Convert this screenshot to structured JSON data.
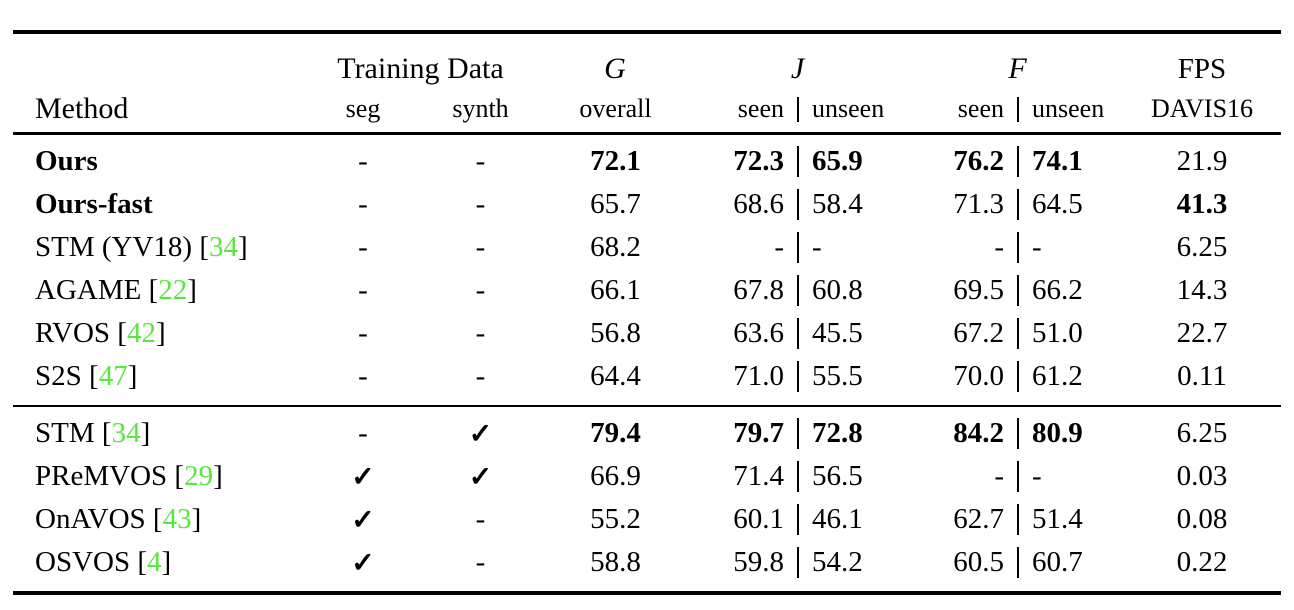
{
  "table": {
    "header": {
      "method": "Method",
      "training_data": "Training Data",
      "seg": "seg",
      "synth": "synth",
      "g_symbol": "G",
      "g_sub": "overall",
      "j_symbol": "J",
      "f_symbol": "F",
      "seen": "seen",
      "unseen": "unseen",
      "fps": "FPS",
      "fps_sub": "DAVIS16"
    },
    "colors": {
      "citation_green": "#58e83c",
      "text": "#000000",
      "background": "#ffffff"
    },
    "glyphs": {
      "checkmark": "✓",
      "dash": "-"
    },
    "sections": [
      {
        "rows": [
          {
            "method": "Ours",
            "cite": "",
            "method_bold": true,
            "seg": "-",
            "synth": "-",
            "g": "72.1",
            "g_bold": true,
            "j_seen": "72.3",
            "j_unseen": "65.9",
            "j_bold": true,
            "f_seen": "76.2",
            "f_unseen": "74.1",
            "f_bold": true,
            "fps": "21.9",
            "fps_bold": false
          },
          {
            "method": "Ours-fast",
            "cite": "",
            "method_bold": true,
            "seg": "-",
            "synth": "-",
            "g": "65.7",
            "g_bold": false,
            "j_seen": "68.6",
            "j_unseen": "58.4",
            "j_bold": false,
            "f_seen": "71.3",
            "f_unseen": "64.5",
            "f_bold": false,
            "fps": "41.3",
            "fps_bold": true
          },
          {
            "method": "STM (YV18)",
            "cite": "34",
            "method_bold": false,
            "seg": "-",
            "synth": "-",
            "g": "68.2",
            "g_bold": false,
            "j_seen": "-",
            "j_unseen": "-",
            "j_bold": false,
            "f_seen": "-",
            "f_unseen": "-",
            "f_bold": false,
            "fps": "6.25",
            "fps_bold": false
          },
          {
            "method": "AGAME",
            "cite": "22",
            "method_bold": false,
            "seg": "-",
            "synth": "-",
            "g": "66.1",
            "g_bold": false,
            "j_seen": "67.8",
            "j_unseen": "60.8",
            "j_bold": false,
            "f_seen": "69.5",
            "f_unseen": "66.2",
            "f_bold": false,
            "fps": "14.3",
            "fps_bold": false
          },
          {
            "method": "RVOS",
            "cite": "42",
            "method_bold": false,
            "seg": "-",
            "synth": "-",
            "g": "56.8",
            "g_bold": false,
            "j_seen": "63.6",
            "j_unseen": "45.5",
            "j_bold": false,
            "f_seen": "67.2",
            "f_unseen": "51.0",
            "f_bold": false,
            "fps": "22.7",
            "fps_bold": false
          },
          {
            "method": "S2S",
            "cite": "47",
            "method_bold": false,
            "seg": "-",
            "synth": "-",
            "g": "64.4",
            "g_bold": false,
            "j_seen": "71.0",
            "j_unseen": "55.5",
            "j_bold": false,
            "f_seen": "70.0",
            "f_unseen": "61.2",
            "f_bold": false,
            "fps": "0.11",
            "fps_bold": false
          }
        ]
      },
      {
        "rows": [
          {
            "method": "STM",
            "cite": "34",
            "method_bold": false,
            "seg": "-",
            "synth": "✓",
            "g": "79.4",
            "g_bold": true,
            "j_seen": "79.7",
            "j_unseen": "72.8",
            "j_bold": true,
            "f_seen": "84.2",
            "f_unseen": "80.9",
            "f_bold": true,
            "fps": "6.25",
            "fps_bold": false
          },
          {
            "method": "PReMVOS",
            "cite": "29",
            "method_bold": false,
            "seg": "✓",
            "synth": "✓",
            "g": "66.9",
            "g_bold": false,
            "j_seen": "71.4",
            "j_unseen": "56.5",
            "j_bold": false,
            "f_seen": "-",
            "f_unseen": "-",
            "f_bold": false,
            "fps": "0.03",
            "fps_bold": false
          },
          {
            "method": "OnAVOS",
            "cite": "43",
            "method_bold": false,
            "seg": "✓",
            "synth": "-",
            "g": "55.2",
            "g_bold": false,
            "j_seen": "60.1",
            "j_unseen": "46.1",
            "j_bold": false,
            "f_seen": "62.7",
            "f_unseen": "51.4",
            "f_bold": false,
            "fps": "0.08",
            "fps_bold": false
          },
          {
            "method": "OSVOS",
            "cite": "4",
            "method_bold": false,
            "seg": "✓",
            "synth": "-",
            "g": "58.8",
            "g_bold": false,
            "j_seen": "59.8",
            "j_unseen": "54.2",
            "j_bold": false,
            "f_seen": "60.5",
            "f_unseen": "60.7",
            "f_bold": false,
            "fps": "0.22",
            "fps_bold": false
          }
        ]
      }
    ]
  },
  "chart_data": {
    "type": "table",
    "title": "VOS benchmark comparison (G / J / F, seen-unseen, FPS on DAVIS16)",
    "columns": [
      "Method",
      "Training Data: seg",
      "Training Data: synth",
      "G overall",
      "J seen",
      "J unseen",
      "F seen",
      "F unseen",
      "FPS DAVIS16"
    ],
    "rows": [
      [
        "Ours",
        "-",
        "-",
        72.1,
        72.3,
        65.9,
        76.2,
        74.1,
        21.9
      ],
      [
        "Ours-fast",
        "-",
        "-",
        65.7,
        68.6,
        58.4,
        71.3,
        64.5,
        41.3
      ],
      [
        "STM (YV18) [34]",
        "-",
        "-",
        68.2,
        null,
        null,
        null,
        null,
        6.25
      ],
      [
        "AGAME [22]",
        "-",
        "-",
        66.1,
        67.8,
        60.8,
        69.5,
        66.2,
        14.3
      ],
      [
        "RVOS [42]",
        "-",
        "-",
        56.8,
        63.6,
        45.5,
        67.2,
        51.0,
        22.7
      ],
      [
        "S2S [47]",
        "-",
        "-",
        64.4,
        71.0,
        55.5,
        70.0,
        61.2,
        0.11
      ],
      [
        "STM [34]",
        "-",
        "yes",
        79.4,
        79.7,
        72.8,
        84.2,
        80.9,
        6.25
      ],
      [
        "PReMVOS [29]",
        "yes",
        "yes",
        66.9,
        71.4,
        56.5,
        null,
        null,
        0.03
      ],
      [
        "OnAVOS [43]",
        "yes",
        "-",
        55.2,
        60.1,
        46.1,
        62.7,
        51.4,
        0.08
      ],
      [
        "OSVOS [4]",
        "yes",
        "-",
        58.8,
        59.8,
        54.2,
        60.5,
        60.7,
        0.22
      ]
    ]
  }
}
